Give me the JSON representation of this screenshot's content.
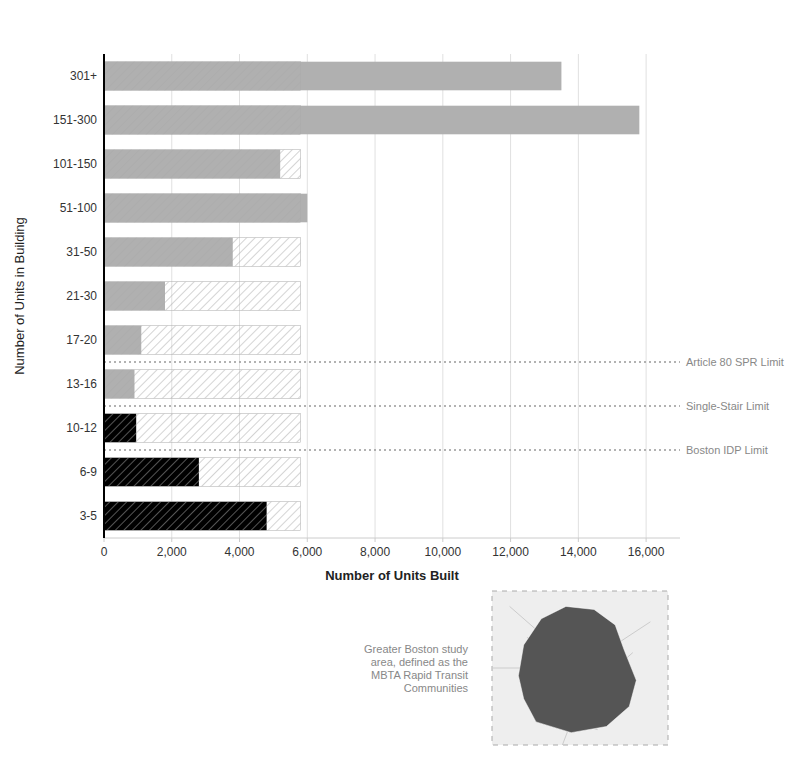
{
  "chart_data": {
    "type": "bar",
    "orientation": "horizontal",
    "categories": [
      "301+",
      "151-300",
      "101-150",
      "51-100",
      "31-50",
      "21-30",
      "17-20",
      "13-16",
      "10-12",
      "6-9",
      "3-5"
    ],
    "values": [
      13500,
      15800,
      5200,
      6000,
      3800,
      1800,
      1100,
      900,
      950,
      2800,
      4800
    ],
    "colors": [
      "#b0b0b0",
      "#b0b0b0",
      "#b0b0b0",
      "#b0b0b0",
      "#b0b0b0",
      "#b0b0b0",
      "#b0b0b0",
      "#b0b0b0",
      "#000000",
      "#000000",
      "#000000"
    ],
    "hatch_limit": 5800,
    "limit_lines": [
      {
        "label": "Article 80 SPR Limit",
        "after": "17-20"
      },
      {
        "label": "Single-Stair Limit",
        "after": "13-16"
      },
      {
        "label": "Boston IDP Limit",
        "after": "10-12"
      }
    ],
    "xlabel": "Number of Units Built",
    "ylabel": "Number of Units in Building",
    "xlim": [
      0,
      17000
    ],
    "xticks": [
      0,
      {
        "value": 2000,
        "label": "2,000"
      },
      {
        "value": 4000,
        "label": "4,000"
      },
      {
        "value": 6000,
        "label": "6,000"
      },
      {
        "value": 8000,
        "label": "8,000"
      },
      {
        "value": 10000,
        "label": "10,000"
      },
      {
        "value": 12000,
        "label": "12,000"
      },
      {
        "value": 14000,
        "label": "14,000"
      },
      {
        "value": 16000,
        "label": "16,000"
      }
    ],
    "grid": true,
    "map_text": "Greater Boston study\narea, defined as the\nMBTA Rapid Transit\nCommunities"
  }
}
